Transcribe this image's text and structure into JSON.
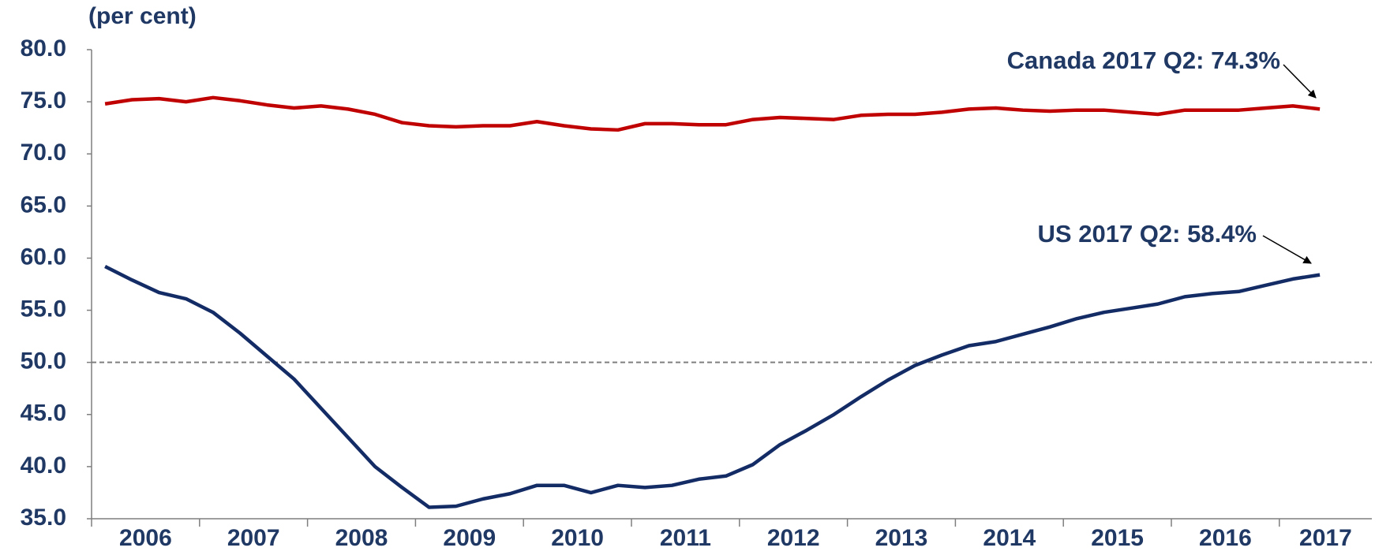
{
  "chart_data": {
    "type": "line",
    "y_label": "(per cent)",
    "categories": [
      "2006",
      null,
      null,
      null,
      "2007",
      null,
      null,
      null,
      "2008",
      null,
      null,
      null,
      "2009",
      null,
      null,
      null,
      "2010",
      null,
      null,
      null,
      "2011",
      null,
      null,
      null,
      "2012",
      null,
      null,
      null,
      "2013",
      null,
      null,
      null,
      "2014",
      null,
      null,
      null,
      "2015",
      null,
      null,
      null,
      "2016",
      null,
      null,
      null,
      "2017",
      null
    ],
    "series": [
      {
        "name": "Canada",
        "color": "#c00000",
        "values": [
          74.8,
          75.2,
          75.3,
          75.0,
          75.4,
          75.1,
          74.7,
          74.4,
          74.6,
          74.3,
          73.8,
          73.0,
          72.7,
          72.6,
          72.7,
          72.7,
          73.1,
          72.7,
          72.4,
          72.3,
          72.9,
          72.9,
          72.8,
          72.8,
          73.3,
          73.5,
          73.4,
          73.3,
          73.7,
          73.8,
          73.8,
          74.0,
          74.3,
          74.4,
          74.2,
          74.1,
          74.2,
          74.2,
          74.0,
          73.8,
          74.2,
          74.2,
          74.2,
          74.4,
          74.6,
          74.3
        ]
      },
      {
        "name": "US",
        "color": "#142c66",
        "values": [
          59.2,
          57.9,
          56.7,
          56.1,
          54.8,
          52.8,
          50.6,
          48.4,
          45.6,
          42.8,
          40.0,
          38.0,
          36.1,
          36.2,
          36.9,
          37.4,
          38.2,
          38.2,
          37.5,
          38.2,
          38.0,
          38.2,
          38.8,
          39.1,
          40.2,
          42.1,
          43.5,
          45.0,
          46.7,
          48.3,
          49.7,
          50.7,
          51.6,
          52.0,
          52.7,
          53.4,
          54.2,
          54.8,
          55.2,
          55.6,
          56.3,
          56.6,
          56.8,
          57.4,
          58.0,
          58.4
        ]
      }
    ],
    "annotations": [
      "Canada 2017 Q2:  74.3%",
      "US 2017 Q2:  58.4%"
    ],
    "reference_line": 50,
    "ylim": [
      35,
      80
    ],
    "yticks": [
      {
        "value": 35,
        "label": "35.0"
      },
      {
        "value": 40,
        "label": "40.0"
      },
      {
        "value": 45,
        "label": "45.0"
      },
      {
        "value": 50,
        "label": "50.0"
      },
      {
        "value": 55,
        "label": "55.0"
      },
      {
        "value": 60,
        "label": "60.0"
      },
      {
        "value": 65,
        "label": "65.0"
      },
      {
        "value": 70,
        "label": "70.0"
      },
      {
        "value": 75,
        "label": "75.0"
      },
      {
        "value": 80,
        "label": "80.0"
      }
    ],
    "grid": false
  }
}
